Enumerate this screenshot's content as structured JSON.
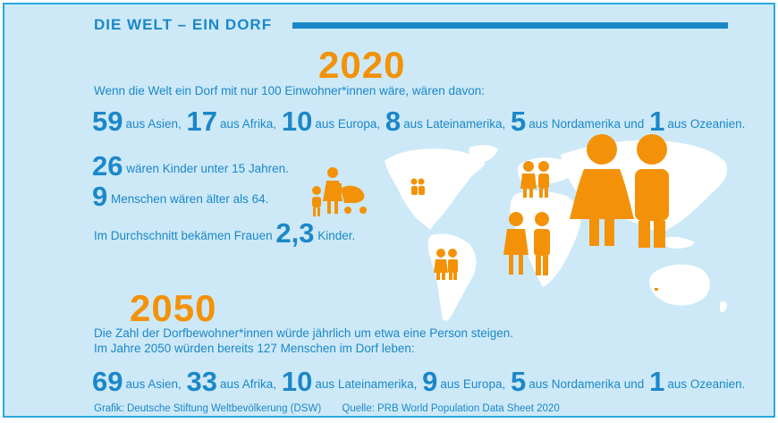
{
  "header": {
    "title": "DIE WELT – EIN DORF"
  },
  "year_2020": {
    "year": "2020",
    "intro": "Wenn die Welt ein Dorf mit nur 100 Einwohner*innen wäre, wären davon:",
    "regions": [
      {
        "value": "59",
        "label": "aus Asien,"
      },
      {
        "value": "17",
        "label": "aus Afrika,"
      },
      {
        "value": "10",
        "label": "aus Europa,"
      },
      {
        "value": "8",
        "label": "aus Lateinamerika,"
      },
      {
        "value": "5",
        "label": "aus Nordamerika und"
      },
      {
        "value": "1",
        "label": "aus Ozeanien."
      }
    ],
    "children": {
      "value": "26",
      "label": "wären Kinder unter 15 Jahren."
    },
    "elderly": {
      "value": "9",
      "label": "Menschen wären älter als 64."
    },
    "fertility": {
      "before": "Im Durchschnitt bekämen Frauen",
      "value": "2,3",
      "after": "Kinder."
    }
  },
  "year_2050": {
    "year": "2050",
    "line1": "Die Zahl der Dorfbewohner*innen würde jährlich um etwa eine Person steigen.",
    "line2": "Im Jahre 2050 würden bereits 127 Menschen im Dorf leben:",
    "regions": [
      {
        "value": "69",
        "label": "aus Asien,"
      },
      {
        "value": "33",
        "label": "aus Afrika,"
      },
      {
        "value": "10",
        "label": "aus Lateinamerika,"
      },
      {
        "value": "9",
        "label": "aus Europa,"
      },
      {
        "value": "5",
        "label": "aus Nordamerika und"
      },
      {
        "value": "1",
        "label": "aus Ozeanien."
      }
    ]
  },
  "footer": {
    "credit": "Grafik: Deutsche Stiftung Weltbevölkerung (DSW)",
    "source": "Quelle: PRB World Population Data Sheet 2020"
  },
  "colors": {
    "accent_blue": "#1b87c9",
    "accent_orange": "#f39208",
    "background": "#cde9f7",
    "map": "#ffffff"
  },
  "icons": [
    "world-map-icon",
    "family-icon",
    "couple-icon"
  ]
}
